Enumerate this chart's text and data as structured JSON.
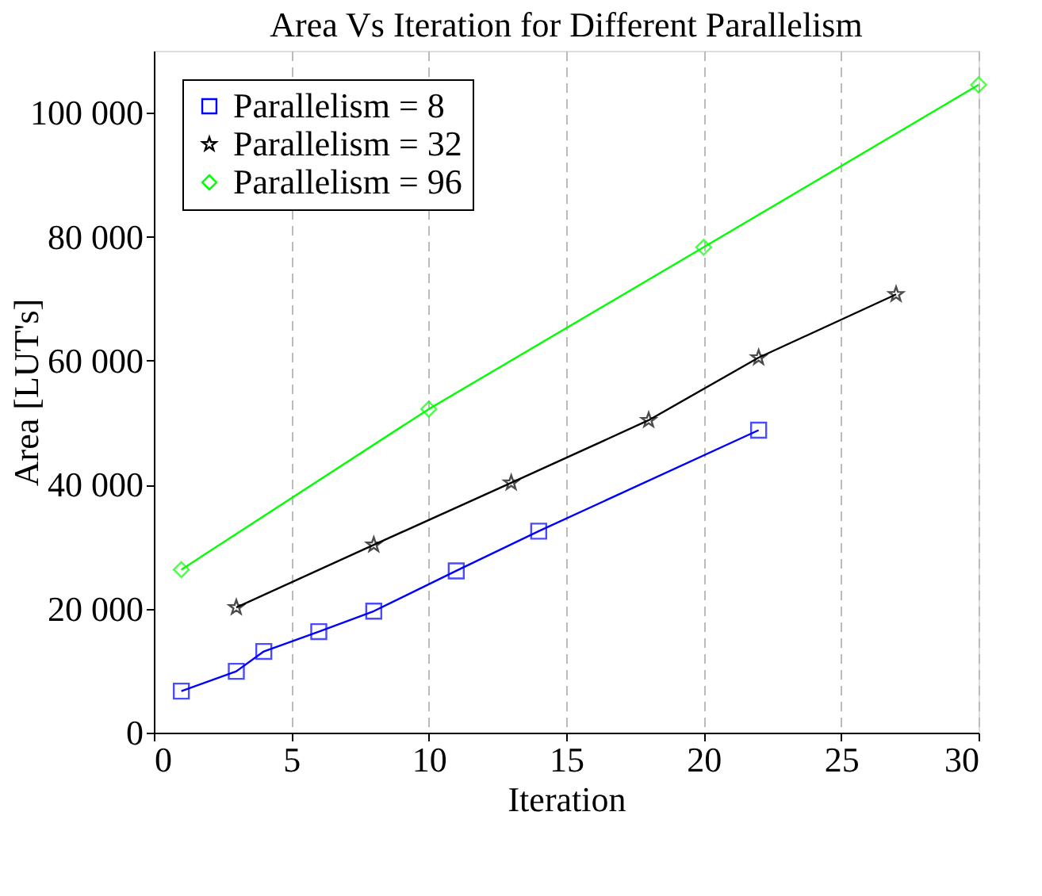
{
  "chart_data": {
    "type": "line",
    "title": "Area Vs Iteration for Different Parallelism",
    "xlabel": "Iteration",
    "ylabel": "Area [LUT's]",
    "xlim": [
      0,
      30
    ],
    "xticks": [
      0,
      5,
      10,
      15,
      20,
      25,
      30
    ],
    "ylim": [
      0,
      110000
    ],
    "yticks": [
      0,
      {
        "value": 20000,
        "label": "20 000"
      },
      {
        "value": 40000,
        "label": "40 000"
      },
      {
        "value": 60000,
        "label": "60 000"
      },
      {
        "value": 80000,
        "label": "80 000"
      },
      {
        "value": 100000,
        "label": "100 000"
      }
    ],
    "grid": "x",
    "legend": "top left",
    "line_style": "solid",
    "series": [
      {
        "name": "Parallelism = 8",
        "color": "#0000ff",
        "marker": "square",
        "x": [
          1,
          3,
          4,
          6,
          8,
          11,
          14,
          22
        ],
        "values": [
          6700,
          9900,
          13100,
          16300,
          19600,
          26100,
          32500,
          48800
        ]
      },
      {
        "name": "Parallelism = 32",
        "color": "#000000",
        "marker": "star",
        "x": [
          3,
          8,
          13,
          18,
          22,
          27
        ],
        "values": [
          20200,
          30300,
          40300,
          50400,
          60500,
          70700
        ]
      },
      {
        "name": "Parallelism = 96",
        "color": "#00ff00",
        "marker": "diamond",
        "x": [
          1,
          10,
          20,
          30
        ],
        "values": [
          26300,
          52200,
          78300,
          104500
        ]
      }
    ]
  }
}
